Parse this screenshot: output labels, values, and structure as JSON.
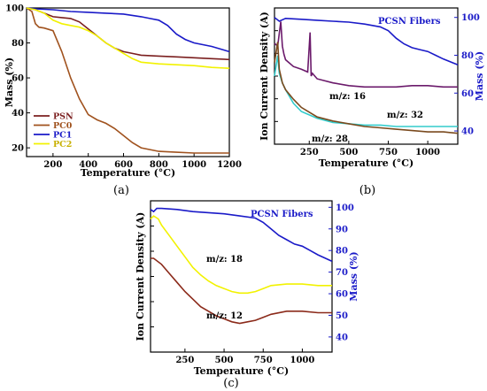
{
  "figure": {
    "panel_labels": [
      "(a)",
      "(b)",
      "(c)"
    ]
  },
  "chart_data": [
    {
      "type": "line",
      "panel": "(a)",
      "xlabel": "Temperature (°C)",
      "ylabel": "Mass (%)",
      "xlim": [
        50,
        1200
      ],
      "ylim": [
        15,
        100
      ],
      "xticks": [
        200,
        400,
        600,
        800,
        1000,
        1200
      ],
      "yticks": [
        20,
        40,
        60,
        80,
        100
      ],
      "legend": "bottom-left",
      "series": [
        {
          "name": "PSN",
          "color": "#7b1f1f",
          "x": [
            50,
            100,
            150,
            200,
            250,
            300,
            350,
            400,
            450,
            500,
            550,
            600,
            650,
            700,
            800,
            900,
            1000,
            1100,
            1200
          ],
          "y": [
            100,
            99,
            97,
            95,
            94.5,
            94,
            92,
            88,
            84,
            80,
            77,
            75,
            74,
            73,
            72.5,
            72,
            71.5,
            71,
            70.5
          ]
        },
        {
          "name": "PC0",
          "color": "#a0521e",
          "x": [
            50,
            80,
            100,
            120,
            150,
            200,
            250,
            300,
            350,
            400,
            450,
            500,
            550,
            600,
            650,
            700,
            800,
            900,
            1000,
            1100,
            1200
          ],
          "y": [
            100,
            98,
            91,
            89,
            88.5,
            87,
            75,
            60,
            48,
            39,
            36,
            34,
            31,
            27,
            23,
            20,
            18,
            17.5,
            17,
            17,
            17
          ]
        },
        {
          "name": "PC1",
          "color": "#1a1ac8",
          "x": [
            50,
            100,
            200,
            300,
            400,
            500,
            600,
            700,
            750,
            800,
            850,
            900,
            950,
            1000,
            1100,
            1200
          ],
          "y": [
            100,
            99.5,
            99,
            98,
            97.5,
            97,
            96.5,
            95,
            94,
            93,
            90,
            85,
            82,
            80,
            78,
            75
          ]
        },
        {
          "name": "PC2",
          "color": "#f2f200",
          "x": [
            50,
            100,
            150,
            200,
            250,
            300,
            350,
            400,
            450,
            500,
            550,
            600,
            650,
            700,
            800,
            900,
            1000,
            1100,
            1200
          ],
          "y": [
            100,
            99,
            97,
            93,
            91,
            90,
            89,
            87,
            84,
            80,
            77,
            74,
            71,
            69,
            68,
            67.5,
            67,
            66,
            65.5
          ]
        }
      ]
    },
    {
      "type": "line",
      "panel": "(b)",
      "xlabel": "Temperature (°C)",
      "ylabel": "Ion Current Density (A)",
      "y2label": "Mass (%)",
      "xlim": [
        30,
        1190
      ],
      "y2lim": [
        33,
        105
      ],
      "xticks": [
        250,
        500,
        750,
        1000
      ],
      "y2ticks": [
        40,
        60,
        80,
        100
      ],
      "series": [
        {
          "name": "PCSN Fibers",
          "axis": "right",
          "color": "#1a1ac8",
          "x": [
            30,
            60,
            100,
            200,
            300,
            400,
            500,
            600,
            700,
            750,
            800,
            850,
            900,
            950,
            1000,
            1050,
            1100,
            1190
          ],
          "y": [
            100,
            98,
            99.5,
            99,
            98.5,
            98,
            97.5,
            96.5,
            95,
            93,
            89,
            86,
            84,
            83,
            82,
            80,
            78,
            75
          ]
        },
        {
          "name": "m/z: 16",
          "axis": "left",
          "color": "#6b1a6b",
          "x": [
            30,
            50,
            70,
            80,
            90,
            100,
            120,
            150,
            200,
            240,
            255,
            262,
            270,
            300,
            400,
            500,
            600,
            700,
            800,
            900,
            1000,
            1100,
            1190
          ],
          "y": [
            0.74,
            0.72,
            0.9,
            0.72,
            0.66,
            0.62,
            0.6,
            0.57,
            0.55,
            0.53,
            0.82,
            0.5,
            0.52,
            0.48,
            0.45,
            0.43,
            0.42,
            0.42,
            0.42,
            0.43,
            0.43,
            0.42,
            0.42
          ]
        },
        {
          "name": "m/z: 32",
          "axis": "left",
          "color": "#33cccc",
          "x": [
            30,
            50,
            60,
            80,
            100,
            150,
            200,
            300,
            400,
            500,
            600,
            700,
            800,
            900,
            1000,
            1100,
            1190
          ],
          "y": [
            0.5,
            0.65,
            0.52,
            0.45,
            0.4,
            0.3,
            0.24,
            0.19,
            0.16,
            0.15,
            0.14,
            0.14,
            0.13,
            0.13,
            0.13,
            0.13,
            0.13
          ]
        },
        {
          "name": "m/z: 28",
          "axis": "left",
          "color": "#7a4a1e",
          "x": [
            30,
            50,
            60,
            80,
            100,
            150,
            200,
            300,
            400,
            500,
            600,
            700,
            800,
            900,
            1000,
            1100,
            1190
          ],
          "y": [
            0.6,
            0.75,
            0.55,
            0.45,
            0.4,
            0.33,
            0.27,
            0.2,
            0.17,
            0.15,
            0.13,
            0.12,
            0.11,
            0.1,
            0.09,
            0.09,
            0.08
          ]
        }
      ]
    },
    {
      "type": "line",
      "panel": "(c)",
      "xlabel": "Temperature (°C)",
      "ylabel": "Ion Current Density (A)",
      "y2label": "Mass (%)",
      "xlim": [
        30,
        1190
      ],
      "y2lim": [
        33,
        103
      ],
      "xticks": [
        250,
        500,
        750,
        1000
      ],
      "y2ticks": [
        40,
        50,
        60,
        70,
        80,
        90,
        100
      ],
      "series": [
        {
          "name": "PCSN Fibers",
          "axis": "right",
          "color": "#1a1ac8",
          "x": [
            30,
            50,
            70,
            100,
            200,
            300,
            400,
            500,
            600,
            700,
            750,
            800,
            850,
            900,
            950,
            1000,
            1050,
            1100,
            1190
          ],
          "y": [
            99,
            98,
            99.5,
            99.5,
            99,
            98,
            97.5,
            97,
            96,
            95,
            93,
            90,
            87,
            85,
            83,
            82,
            80,
            78,
            75
          ]
        },
        {
          "name": "m/z: 18",
          "axis": "left",
          "color": "#f2f200",
          "x": [
            30,
            50,
            80,
            100,
            150,
            200,
            250,
            300,
            350,
            400,
            450,
            500,
            550,
            600,
            650,
            700,
            750,
            800,
            900,
            1000,
            1100,
            1190
          ],
          "y": [
            0.88,
            0.9,
            0.88,
            0.84,
            0.77,
            0.7,
            0.63,
            0.56,
            0.51,
            0.47,
            0.44,
            0.42,
            0.4,
            0.39,
            0.39,
            0.4,
            0.42,
            0.44,
            0.45,
            0.45,
            0.44,
            0.44
          ]
        },
        {
          "name": "m/z: 12",
          "axis": "left",
          "color": "#8b2a1a",
          "x": [
            30,
            50,
            100,
            150,
            200,
            250,
            300,
            350,
            400,
            450,
            500,
            550,
            600,
            650,
            700,
            750,
            800,
            900,
            1000,
            1100,
            1190
          ],
          "y": [
            0.62,
            0.62,
            0.58,
            0.52,
            0.46,
            0.4,
            0.35,
            0.3,
            0.27,
            0.24,
            0.22,
            0.2,
            0.19,
            0.2,
            0.21,
            0.23,
            0.25,
            0.27,
            0.27,
            0.26,
            0.26
          ]
        }
      ]
    }
  ]
}
